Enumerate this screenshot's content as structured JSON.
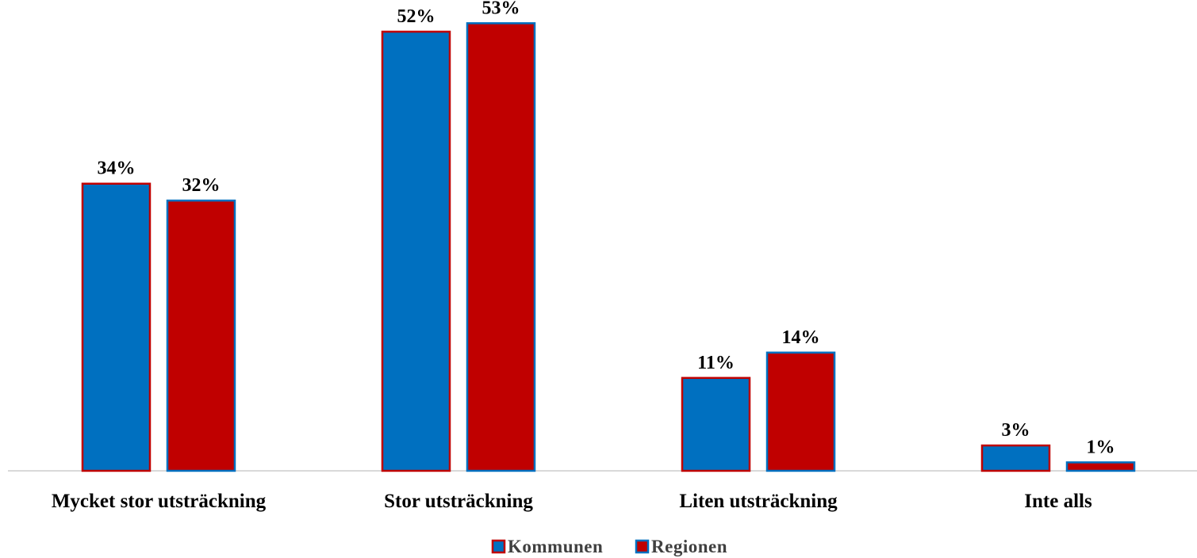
{
  "chart_data": {
    "type": "bar",
    "categories": [
      "Mycket stor utsträckning",
      "Stor utsträckning",
      "Liten utsträckning",
      "Inte alls"
    ],
    "series": [
      {
        "name": "Kommunen",
        "values": [
          34,
          52,
          11,
          3
        ],
        "labels": [
          "34%",
          "52%",
          "11%",
          "3%"
        ],
        "fill": "#0070C0",
        "stroke": "#C00000"
      },
      {
        "name": "Regionen",
        "values": [
          32,
          53,
          14,
          1
        ],
        "labels": [
          "32%",
          "53%",
          "14%",
          "1%"
        ],
        "fill": "#C00000",
        "stroke": "#0070C0"
      }
    ],
    "ylim": [
      0,
      55
    ],
    "grid": false,
    "legend_position": "bottom-center",
    "axis_color": "#D9D9D9"
  }
}
